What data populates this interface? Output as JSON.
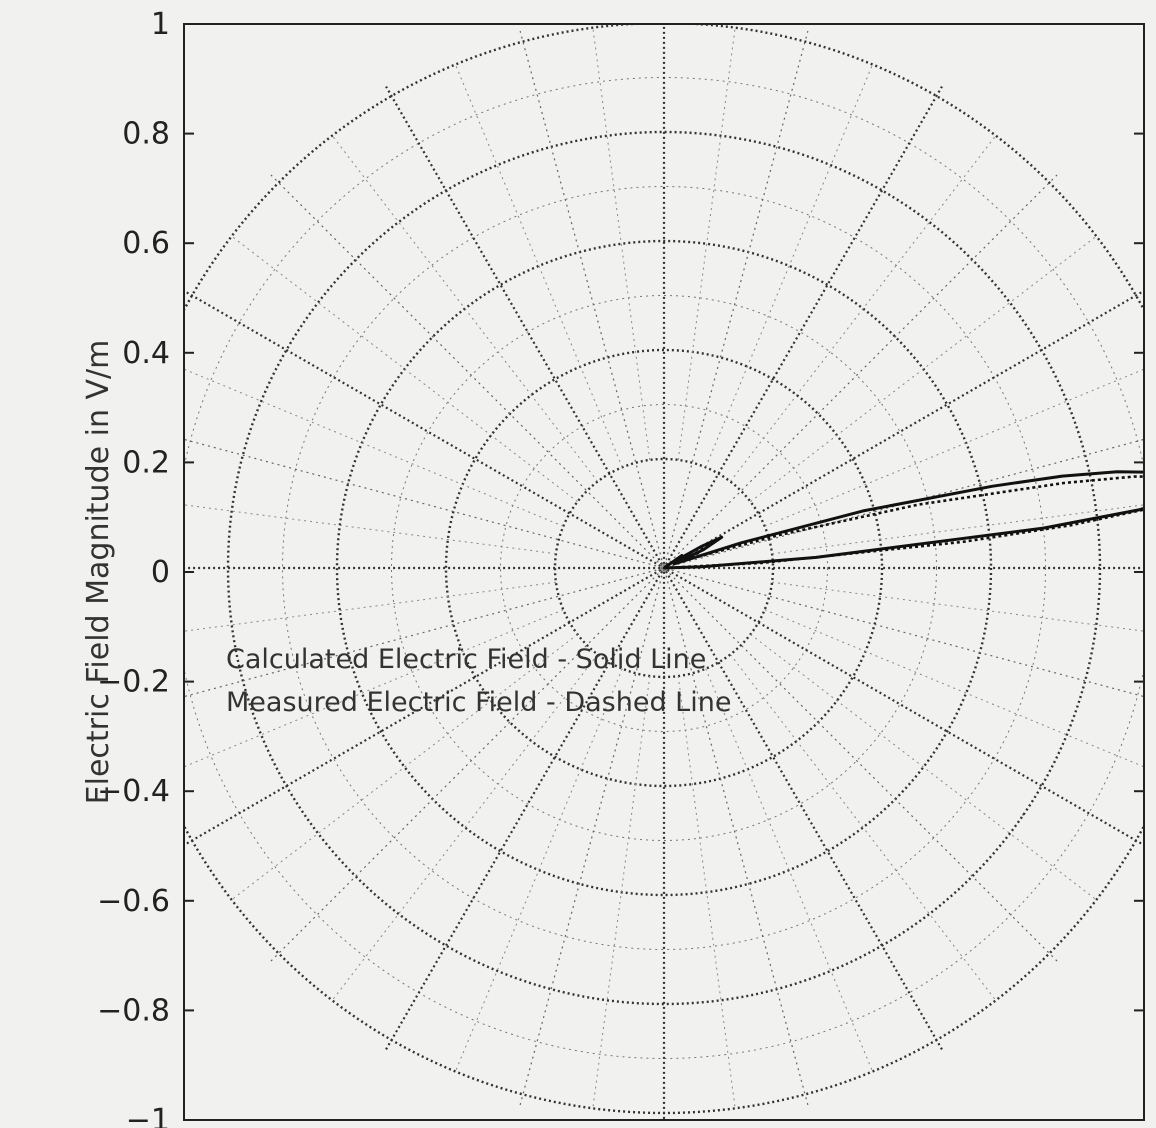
{
  "chart_data": {
    "type": "line",
    "coordinate_system": "polar",
    "xlabel": "",
    "ylabel": "Electric Field Magnitude in V/m",
    "ylim": [
      -1,
      1
    ],
    "xlim": [
      -1,
      1
    ],
    "yticks": [
      {
        "value": 1,
        "label": "1"
      },
      {
        "value": 0.8,
        "label": "0.8"
      },
      {
        "value": 0.6,
        "label": "0.6"
      },
      {
        "value": 0.4,
        "label": "0.4"
      },
      {
        "value": 0.2,
        "label": "0.2"
      },
      {
        "value": 0,
        "label": "0"
      },
      {
        "value": -0.2,
        "label": "-0.2"
      },
      {
        "value": -0.4,
        "label": "-0.4"
      },
      {
        "value": -0.6,
        "label": "-0.6"
      },
      {
        "value": -0.8,
        "label": "-0.8"
      },
      {
        "value": -1,
        "label": "-1"
      }
    ],
    "polar_grid": {
      "radii": [
        0.2,
        0.4,
        0.6,
        0.8,
        1.0
      ],
      "spoke_angle_step_deg": 15
    },
    "annotations": [
      "Calculated Electric Field - Solid Line",
      "Measured Electric Field - Dashed Line"
    ],
    "series": [
      {
        "style": "solid",
        "theta_deg": [
          0,
          2,
          4,
          6,
          7,
          8,
          9,
          10,
          11,
          12,
          13,
          14,
          16,
          18,
          22,
          25,
          28,
          30,
          32,
          35,
          40
        ],
        "r": [
          0.0,
          0.07,
          0.28,
          0.7,
          0.88,
          0.97,
          0.99,
          0.97,
          0.92,
          0.85,
          0.75,
          0.62,
          0.38,
          0.15,
          0.02,
          0.08,
          0.12,
          0.08,
          0.02,
          0.04,
          0.0
        ]
      },
      {
        "style": "dashed",
        "theta_deg": [
          0,
          3,
          5,
          6,
          7,
          8,
          9,
          10,
          11,
          12,
          14,
          16,
          20,
          24,
          27,
          30,
          33,
          38
        ],
        "r": [
          0.0,
          0.18,
          0.55,
          0.75,
          0.9,
          0.97,
          0.99,
          0.96,
          0.88,
          0.75,
          0.48,
          0.22,
          0.04,
          0.07,
          0.1,
          0.06,
          0.02,
          0.0
        ]
      }
    ]
  }
}
